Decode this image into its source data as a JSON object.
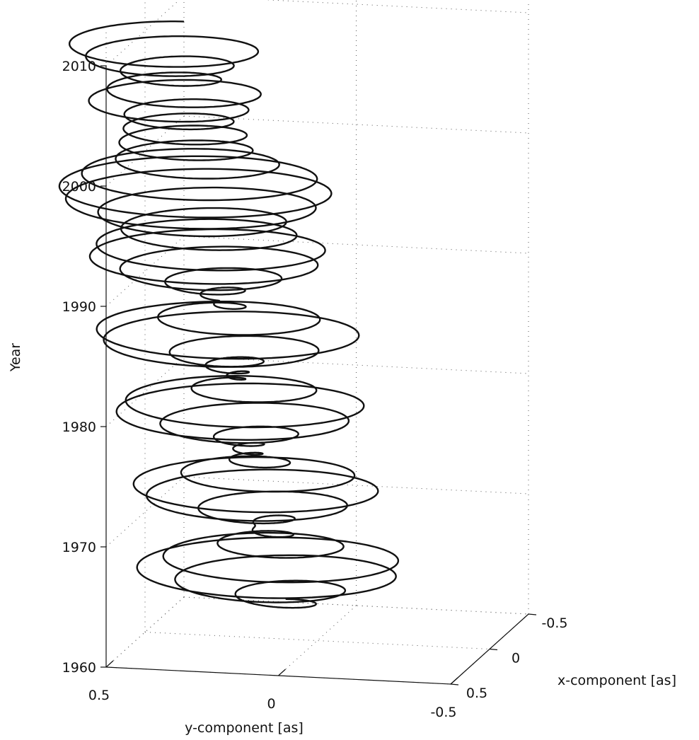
{
  "chart_data": {
    "type": "line",
    "subtype": "3d-helix",
    "description_of_series": "polar motion trajectory",
    "title": "",
    "zlabel": "Year",
    "ylabel": "y-component [as]",
    "xlabel": "x-component [as]",
    "zlim": [
      1960,
      2010
    ],
    "ylim": [
      -0.5,
      0.5
    ],
    "xlim": [
      -0.5,
      0.5
    ],
    "z_ticks": [
      {
        "value": 1960,
        "label": "1960"
      },
      {
        "value": 1970,
        "label": "1970"
      },
      {
        "value": 1980,
        "label": "1980"
      },
      {
        "value": 1990,
        "label": "1990"
      },
      {
        "value": 2000,
        "label": "2000"
      },
      {
        "value": 2010,
        "label": "2010"
      }
    ],
    "y_ticks": [
      {
        "value": 0.5,
        "label": "0.5"
      },
      {
        "value": 0,
        "label": "0"
      },
      {
        "value": -0.5,
        "label": "-0.5"
      }
    ],
    "x_ticks": [
      {
        "value": -0.5,
        "label": "-0.5"
      },
      {
        "value": 0,
        "label": "0"
      },
      {
        "value": 0.5,
        "label": "0.5"
      }
    ],
    "grid": true,
    "trajectory": {
      "start_year": 1962.8,
      "end_year": 2010.5,
      "chandler_period_years": 1.19,
      "annual_period_years": 1.0,
      "chandler_amplitude_envelope": [
        {
          "year": 1963,
          "amp": 0.18
        },
        {
          "year": 1966,
          "amp": 0.3
        },
        {
          "year": 1969,
          "amp": 0.1
        },
        {
          "year": 1973,
          "amp": 0.26
        },
        {
          "year": 1976,
          "amp": 0.05
        },
        {
          "year": 1980,
          "amp": 0.28
        },
        {
          "year": 1983,
          "amp": 0.04
        },
        {
          "year": 1986,
          "amp": 0.3
        },
        {
          "year": 1989,
          "amp": 0.08
        },
        {
          "year": 1994,
          "amp": 0.32
        },
        {
          "year": 2001,
          "amp": 0.28
        },
        {
          "year": 2004,
          "amp": 0.06
        },
        {
          "year": 2006,
          "amp": 0.24
        },
        {
          "year": 2009,
          "amp": 0.2
        },
        {
          "year": 2010.5,
          "amp": 0.18
        }
      ],
      "annual_amplitude": 0.09,
      "mean_x_start": 0.04,
      "mean_x_end": 0.2,
      "mean_y_start": 0.1,
      "mean_y_end": 0.4
    }
  }
}
